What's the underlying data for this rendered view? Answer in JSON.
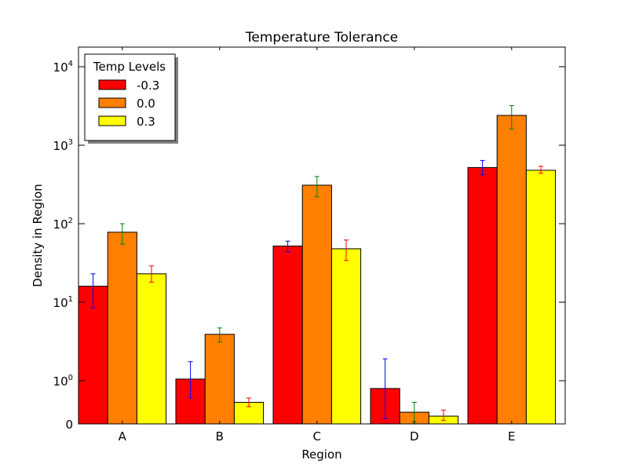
{
  "chart_data": {
    "type": "bar",
    "title": "Temperature Tolerance",
    "xlabel": "Region",
    "ylabel": "Density in Region",
    "yscale": "symlog",
    "ylim": [
      0,
      10000
    ],
    "grid": false,
    "categories": [
      "A",
      "B",
      "C",
      "D",
      "E"
    ],
    "y_ticks": [
      {
        "value": 0,
        "base": "0",
        "exp": ""
      },
      {
        "value": 1,
        "base": "10",
        "exp": "0"
      },
      {
        "value": 10,
        "base": "10",
        "exp": "1"
      },
      {
        "value": 100,
        "base": "10",
        "exp": "2"
      },
      {
        "value": 1000,
        "base": "10",
        "exp": "3"
      },
      {
        "value": 10000,
        "base": "10",
        "exp": "4"
      }
    ],
    "legend": {
      "title": "Temp Levels",
      "position": "upper-left"
    },
    "series": [
      {
        "name": "-0.3",
        "color": "#ff0000",
        "err_color": "#0000ff",
        "values": [
          16,
          1.05,
          52,
          0.82,
          520
        ],
        "err_low": [
          8.5,
          0.6,
          44,
          0.12,
          420
        ],
        "err_high": [
          23,
          1.75,
          60,
          1.9,
          640
        ]
      },
      {
        "name": "0.0",
        "color": "#ff7f00",
        "err_color": "#008000",
        "values": [
          78,
          3.9,
          310,
          0.27,
          2400
        ],
        "err_low": [
          55,
          3.1,
          220,
          0.05,
          1600
        ],
        "err_high": [
          100,
          4.7,
          400,
          0.5,
          3200
        ]
      },
      {
        "name": "0.3",
        "color": "#ffff00",
        "err_color": "#ff0000",
        "values": [
          23,
          0.5,
          48,
          0.18,
          480
        ],
        "err_low": [
          18,
          0.4,
          34,
          0.08,
          440
        ],
        "err_high": [
          29,
          0.6,
          62,
          0.32,
          540
        ]
      }
    ]
  }
}
